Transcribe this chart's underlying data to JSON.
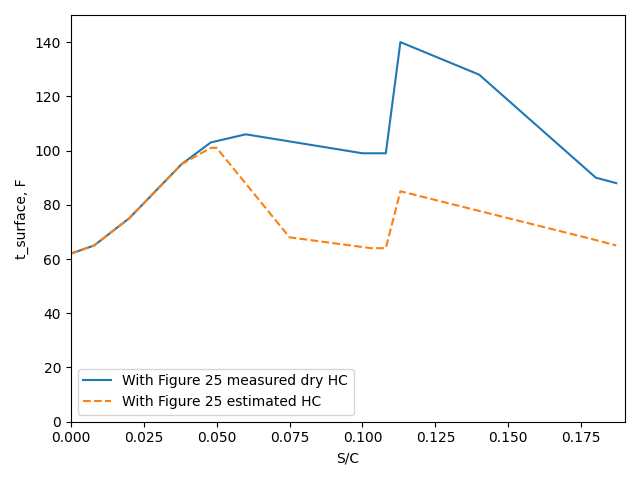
{
  "xlabel": "S/C",
  "ylabel": "t_surface, F",
  "xlim": [
    0.0,
    0.19
  ],
  "ylim": [
    0,
    150
  ],
  "yticks": [
    0,
    20,
    40,
    60,
    80,
    100,
    120,
    140
  ],
  "xticks": [
    0.0,
    0.025,
    0.05,
    0.075,
    0.1,
    0.125,
    0.15,
    0.175
  ],
  "line1": {
    "x": [
      0.0,
      0.008,
      0.02,
      0.038,
      0.048,
      0.06,
      0.1,
      0.108,
      0.113,
      0.14,
      0.18,
      0.187
    ],
    "y": [
      62,
      65,
      75,
      95,
      103,
      106,
      99,
      99,
      140,
      128,
      90,
      88
    ],
    "color": "#1f77b4",
    "linestyle": "-",
    "linewidth": 1.5,
    "label": "With Figure 25 measured dry HC"
  },
  "line2": {
    "x": [
      0.0,
      0.008,
      0.02,
      0.038,
      0.048,
      0.05,
      0.075,
      0.103,
      0.108,
      0.113,
      0.18,
      0.187
    ],
    "y": [
      62,
      65,
      75,
      95,
      101,
      101,
      68,
      64,
      64,
      85,
      67,
      65
    ],
    "color": "#ff7f0e",
    "linestyle": "--",
    "linewidth": 1.5,
    "label": "With Figure 25 estimated HC"
  },
  "legend_loc": "lower left",
  "background_color": "#ffffff"
}
